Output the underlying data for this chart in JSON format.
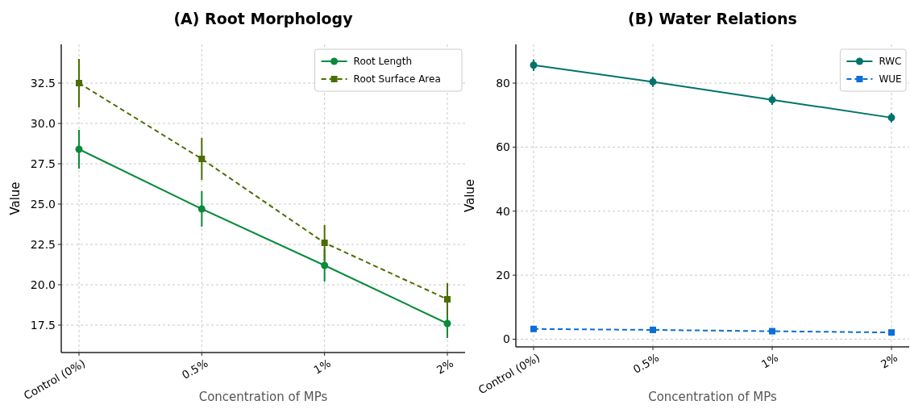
{
  "chart_data": [
    {
      "type": "line",
      "title": "(A) Root Morphology",
      "xlabel": "Concentration of MPs",
      "ylabel": "Value",
      "categories": [
        "Control (0%)",
        "0.5%",
        "1%",
        "2%"
      ],
      "ylim": [
        15.8,
        34.9
      ],
      "yticks": [
        {
          "value": 17.5,
          "label": "17.5"
        },
        {
          "value": 20,
          "label": "20.0"
        },
        {
          "value": 22.5,
          "label": "22.5"
        },
        {
          "value": 25,
          "label": "25.0"
        },
        {
          "value": 27.5,
          "label": "27.5"
        },
        {
          "value": 30,
          "label": "30.0"
        },
        {
          "value": 32.5,
          "label": "32.5"
        }
      ],
      "grid": true,
      "legend": "top right",
      "series": [
        {
          "name": "Root Length",
          "color": "#0a8a3a",
          "values": [
            28.4,
            24.7,
            21.2,
            17.6
          ],
          "errors": [
            1.2,
            1.1,
            1.0,
            0.9
          ],
          "marker": "circle",
          "line_style": "solid"
        },
        {
          "name": "Root Surface Area",
          "color": "#4a6e00",
          "values": [
            32.5,
            27.8,
            22.6,
            19.1
          ],
          "errors": [
            1.5,
            1.3,
            1.1,
            1.0
          ],
          "marker": "square",
          "line_style": "dashed"
        }
      ]
    },
    {
      "type": "line",
      "title": "(B) Water Relations",
      "xlabel": "Concentration of MPs",
      "ylabel": "Value",
      "categories": [
        "Control (0%)",
        "0.5%",
        "1%",
        "2%"
      ],
      "ylim": [
        -2.4,
        92.1
      ],
      "yticks": [
        0,
        20,
        40,
        60,
        80
      ],
      "grid": true,
      "legend": "top right",
      "series": [
        {
          "name": "RWC",
          "color": "#00736a",
          "values": [
            85.6,
            80.4,
            74.8,
            69.2
          ],
          "errors": [
            1.8,
            1.6,
            1.6,
            1.5
          ],
          "marker": "circle",
          "line_style": "solid"
        },
        {
          "name": "WUE",
          "color": "#0a6fd6",
          "values": [
            3.2,
            2.9,
            2.5,
            2.1
          ],
          "errors": [
            0.3,
            0.3,
            0.3,
            0.3
          ],
          "marker": "square",
          "line_style": "dashed"
        }
      ]
    }
  ]
}
